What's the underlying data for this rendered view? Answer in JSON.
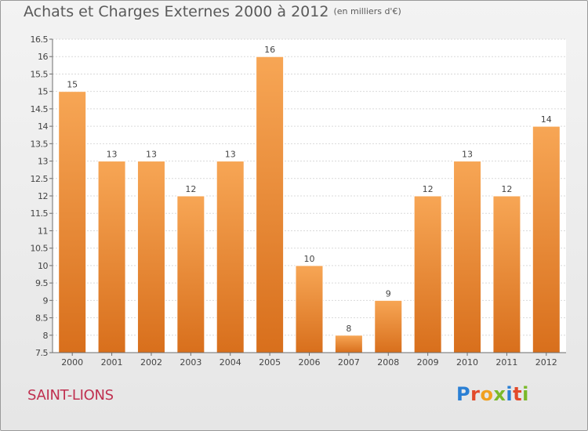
{
  "page": {
    "title": "Achats et Charges Externes 2000 à 2012",
    "unit": "(en milliers d'€)",
    "commune": "SAINT-LIONS",
    "logo": "Proxiti"
  },
  "colors": {
    "bar_light": "#f7a655",
    "bar_dark": "#d86f1c",
    "axis": "#6d6d6d",
    "grid": "#d9d9d9",
    "commune_text": "#c03050",
    "logo_letters": [
      "#2a7fd4",
      "#e2492a",
      "#f0a020",
      "#7ab929",
      "#2a7fd4",
      "#e2492a",
      "#7ab929"
    ]
  },
  "chart_data": {
    "type": "bar",
    "title": "Achats et Charges Externes 2000 à 2012",
    "subtitle": "(en milliers d'€)",
    "categories": [
      "2000",
      "2001",
      "2002",
      "2003",
      "2004",
      "2005",
      "2006",
      "2007",
      "2008",
      "2009",
      "2010",
      "2011",
      "2012"
    ],
    "values": [
      15,
      13,
      13,
      12,
      13,
      16,
      10,
      8,
      9,
      12,
      13,
      12,
      14
    ],
    "value_labels": [
      "15",
      "13",
      "13",
      "12",
      "13",
      "16",
      "10",
      "8",
      "9",
      "12",
      "13",
      "12",
      "14"
    ],
    "ylim": [
      7.5,
      16.5
    ],
    "yticks": [
      7.5,
      8,
      8.5,
      9,
      9.5,
      10,
      10.5,
      11,
      11.5,
      12,
      12.5,
      13,
      13.5,
      14,
      14.5,
      15,
      15.5,
      16,
      16.5
    ],
    "ytick_labels": [
      "7.5",
      "8",
      "8.5",
      "9",
      "9.5",
      "10",
      "10.5",
      "11",
      "11.5",
      "12",
      "12.5",
      "13",
      "13.5",
      "14",
      "14.5",
      "15",
      "15.5",
      "16",
      "16.5"
    ],
    "grid": true
  }
}
